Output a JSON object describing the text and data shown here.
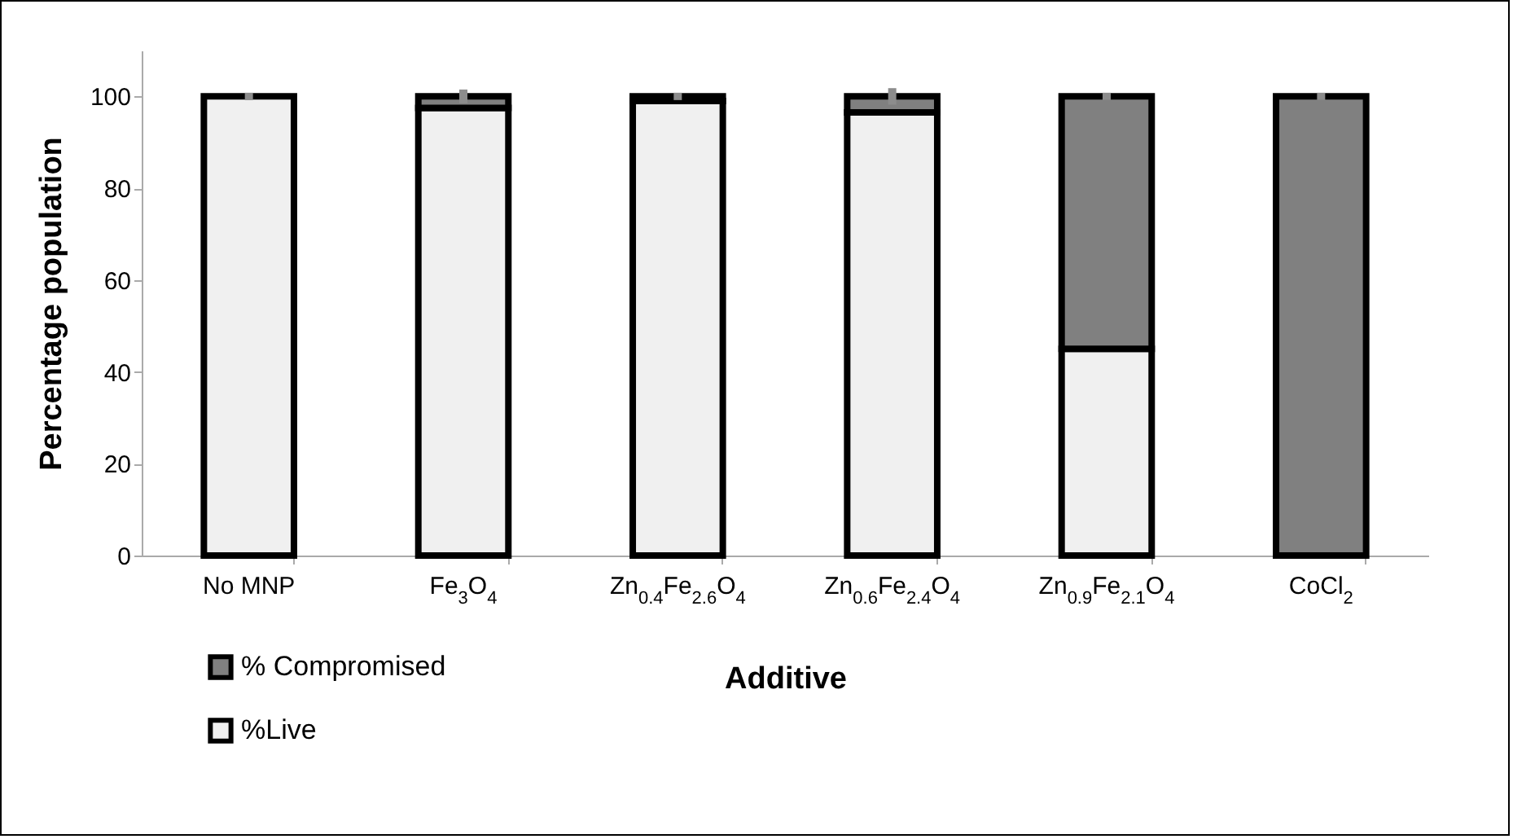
{
  "chart_data": {
    "type": "bar",
    "stacked": true,
    "xlabel": "Additive",
    "ylabel": "Percentage population",
    "categories": [
      "No MNP",
      "Fe$_{3}$O$_{4}$",
      "Zn$_{0.4}$Fe$_{2.6}$O$_{4}$",
      "Zn$_{0.6}$Fe$_{2.4}$O$_{4}$",
      "Zn$_{0.9}$Fe$_{2.1}$O$_{4}$",
      "CoCl$_{2}$"
    ],
    "series": [
      {
        "name": "%Live",
        "color": "#f0f0f0",
        "values": [
          100,
          97.5,
          99,
          96.5,
          45,
          0
        ]
      },
      {
        "name": "% Compromised",
        "color": "#808080",
        "values": [
          0,
          2.5,
          1,
          3.5,
          55,
          100
        ],
        "errors": [
          0.8,
          1.5,
          0.8,
          1.8,
          0.8,
          0.8
        ]
      }
    ],
    "ylim": [
      0,
      110
    ],
    "yticks": [
      0,
      20,
      40,
      60,
      80,
      100
    ],
    "grid": false,
    "legend": "bottom left"
  }
}
